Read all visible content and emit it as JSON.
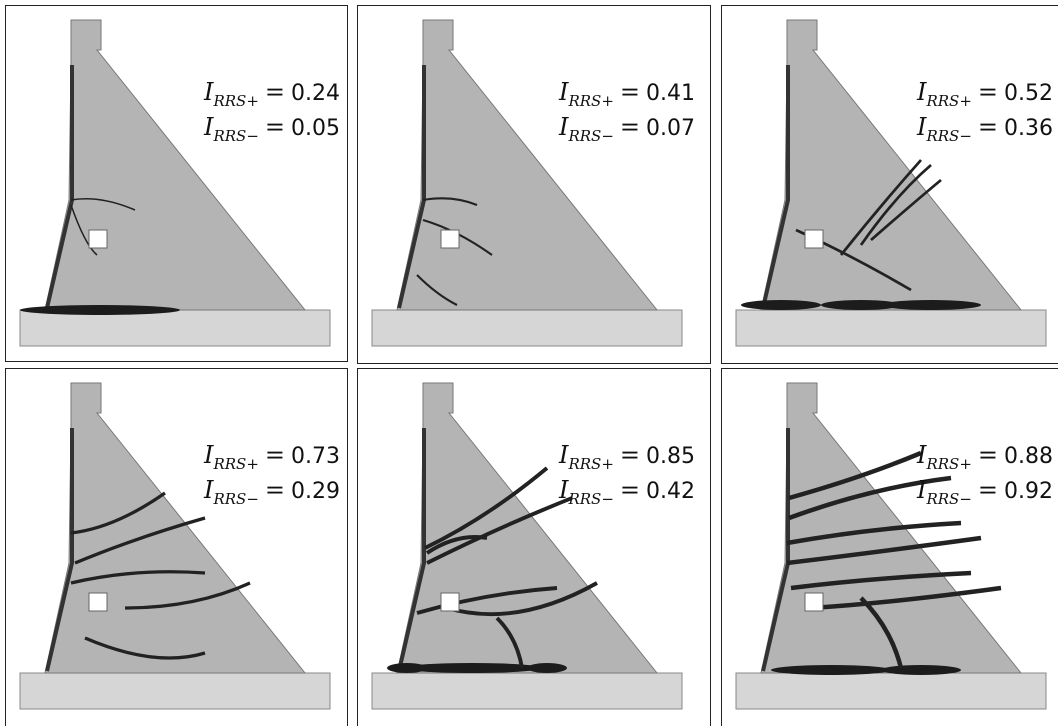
{
  "symbol": "I",
  "subscript_plus": "RRS+",
  "subscript_minus": "RRS−",
  "equals": "=",
  "panels": [
    {
      "plus": 0.24,
      "minus": 0.05
    },
    {
      "plus": 0.41,
      "minus": 0.07
    },
    {
      "plus": 0.52,
      "minus": 0.36
    },
    {
      "plus": 0.73,
      "minus": 0.29
    },
    {
      "plus": 0.85,
      "minus": 0.42
    },
    {
      "plus": 0.88,
      "minus": 0.92
    }
  ]
}
